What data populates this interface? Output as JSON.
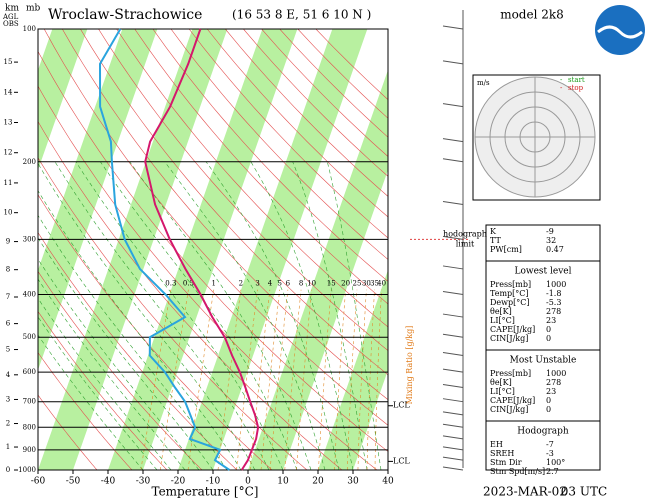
{
  "chart_data": {
    "type": "skewt",
    "title": "Wroclaw-Strachowice",
    "subtitle": "(16 53 8 E, 51 6 10 N )",
    "model": "model 2k8",
    "date": "2023-MAR-02",
    "time": "03 UTC",
    "x_label": "Temperature [°C]",
    "xlim": [
      -60,
      40
    ],
    "xticks": [
      -60,
      -50,
      -40,
      -30,
      -20,
      -10,
      0,
      10,
      20,
      30,
      40
    ],
    "ylim": [
      1000,
      100
    ],
    "yticks": [
      1000,
      900,
      800,
      700,
      600,
      500,
      400,
      300,
      200,
      100
    ],
    "y_label": "mb",
    "km_label": "km",
    "agl_label": "AGL",
    "obs_label": "OBS",
    "km_ticks": [
      0,
      1,
      2,
      3,
      4,
      5,
      6,
      7,
      8,
      9,
      10,
      11,
      12,
      13,
      14,
      15
    ],
    "pressure": [
      1000,
      950,
      900,
      850,
      800,
      750,
      700,
      650,
      600,
      550,
      500,
      450,
      400,
      350,
      300,
      250,
      200,
      180,
      150,
      120,
      100
    ],
    "series": [
      {
        "color": "#d4176c",
        "values": [
          -1.8,
          -1.0,
          -0.9,
          -0.8,
          -1.4,
          -3.5,
          -6.2,
          -9.0,
          -12.1,
          -16.0,
          -19.9,
          -25.5,
          -31.1,
          -38.0,
          -45.4,
          -53.1,
          -60.2,
          -60.8,
          -58.6,
          -57.7,
          -57.7
        ]
      },
      {
        "color": "#2aa4de",
        "values": [
          -5.3,
          -10.4,
          -10.0,
          -19.7,
          -19.4,
          -22.0,
          -24.8,
          -29.1,
          -33.5,
          -39.5,
          -41.3,
          -33.3,
          -41.1,
          -51.0,
          -58.3,
          -64.5,
          -69.7,
          -72.0,
          -78.6,
          -82.9,
          -80.6
        ]
      }
    ],
    "mixing_ratio": {
      "label": "Mixing Ratio [g/kg]",
      "values": [
        0.3,
        0.5,
        1,
        2,
        3,
        4,
        5,
        6,
        8,
        10,
        15,
        20,
        25,
        30,
        35,
        40
      ]
    },
    "lcl": [
      {
        "label": "LCL",
        "pressure": 715
      },
      {
        "label": "LCL",
        "pressure": 956
      }
    ],
    "hodograph_limit": {
      "lines": [
        "hodograph",
        "limit"
      ],
      "pressure": 300
    },
    "hodograph": {
      "unit": "m/s",
      "start": "start",
      "stop": "stop"
    }
  },
  "indices": {
    "sections": [
      {
        "rows": [
          [
            "K",
            -9
          ],
          [
            "TT",
            32
          ],
          [
            "PW[cm]",
            0.47
          ]
        ]
      },
      {
        "title": "Lowest level",
        "rows": [
          [
            "Press[mb]",
            1000
          ],
          [
            "Temp[°C]",
            -1.8
          ],
          [
            "Dewp[°C]",
            -5.3
          ],
          [
            "θe[K]",
            278
          ],
          [
            "LI[°C]",
            23
          ],
          [
            "CAPE[J/kg]",
            0
          ],
          [
            "CIN[J/kg]",
            0
          ]
        ]
      },
      {
        "title": "Most Unstable",
        "rows": [
          [
            "Press[mb]",
            1000
          ],
          [
            "θe[K]",
            278
          ],
          [
            "LI[°C]",
            23
          ],
          [
            "CAPE[J/kg]",
            0
          ],
          [
            "CIN[J/kg]",
            0
          ]
        ]
      },
      {
        "title": "Hodograph",
        "rows": [
          [
            "EH",
            -7
          ],
          [
            "SREH",
            -3
          ],
          [
            "Stm Dir",
            "100°"
          ],
          [
            "Stm Spd[m/s]",
            2.7
          ]
        ]
      }
    ]
  }
}
